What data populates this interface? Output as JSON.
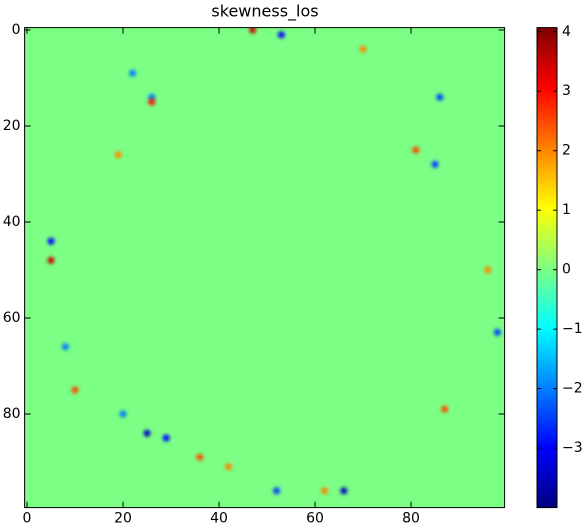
{
  "chart_data": {
    "type": "heatmap",
    "title": "skewness_los",
    "colormap": "jet",
    "background_value": 0,
    "cells": {
      "x": [
        47,
        53,
        70,
        26,
        22,
        26,
        81,
        86,
        85,
        19,
        5,
        5,
        8,
        10,
        25,
        29,
        36,
        42,
        66,
        98,
        96,
        87,
        20,
        52,
        62
      ],
      "y": [
        0,
        1,
        4,
        14,
        9,
        15,
        25,
        14,
        28,
        26,
        44,
        48,
        66,
        75,
        84,
        85,
        89,
        91,
        96,
        63,
        50,
        79,
        80,
        96,
        96
      ],
      "values": [
        3.5,
        -3,
        2,
        -2,
        -2,
        3,
        2.5,
        -2.5,
        -2.5,
        2,
        -3,
        3.5,
        -2,
        2.5,
        -3.5,
        -3,
        2.5,
        2,
        -3.5,
        -2.5,
        2,
        2.5,
        -2,
        -2.5,
        2
      ]
    },
    "xlim": [
      -0.5,
      99.5
    ],
    "ylim": [
      99.5,
      -0.5
    ],
    "xticks": [
      0,
      20,
      40,
      60,
      80
    ],
    "yticks": [
      0,
      20,
      40,
      60,
      80
    ],
    "colorbar": {
      "clim": [
        -4,
        4.07
      ],
      "ticks": [
        {
          "value": -3,
          "label": "−3"
        },
        {
          "value": -2,
          "label": "−2"
        },
        {
          "value": -1,
          "label": "−1"
        },
        0,
        1,
        2,
        3,
        4
      ]
    }
  }
}
